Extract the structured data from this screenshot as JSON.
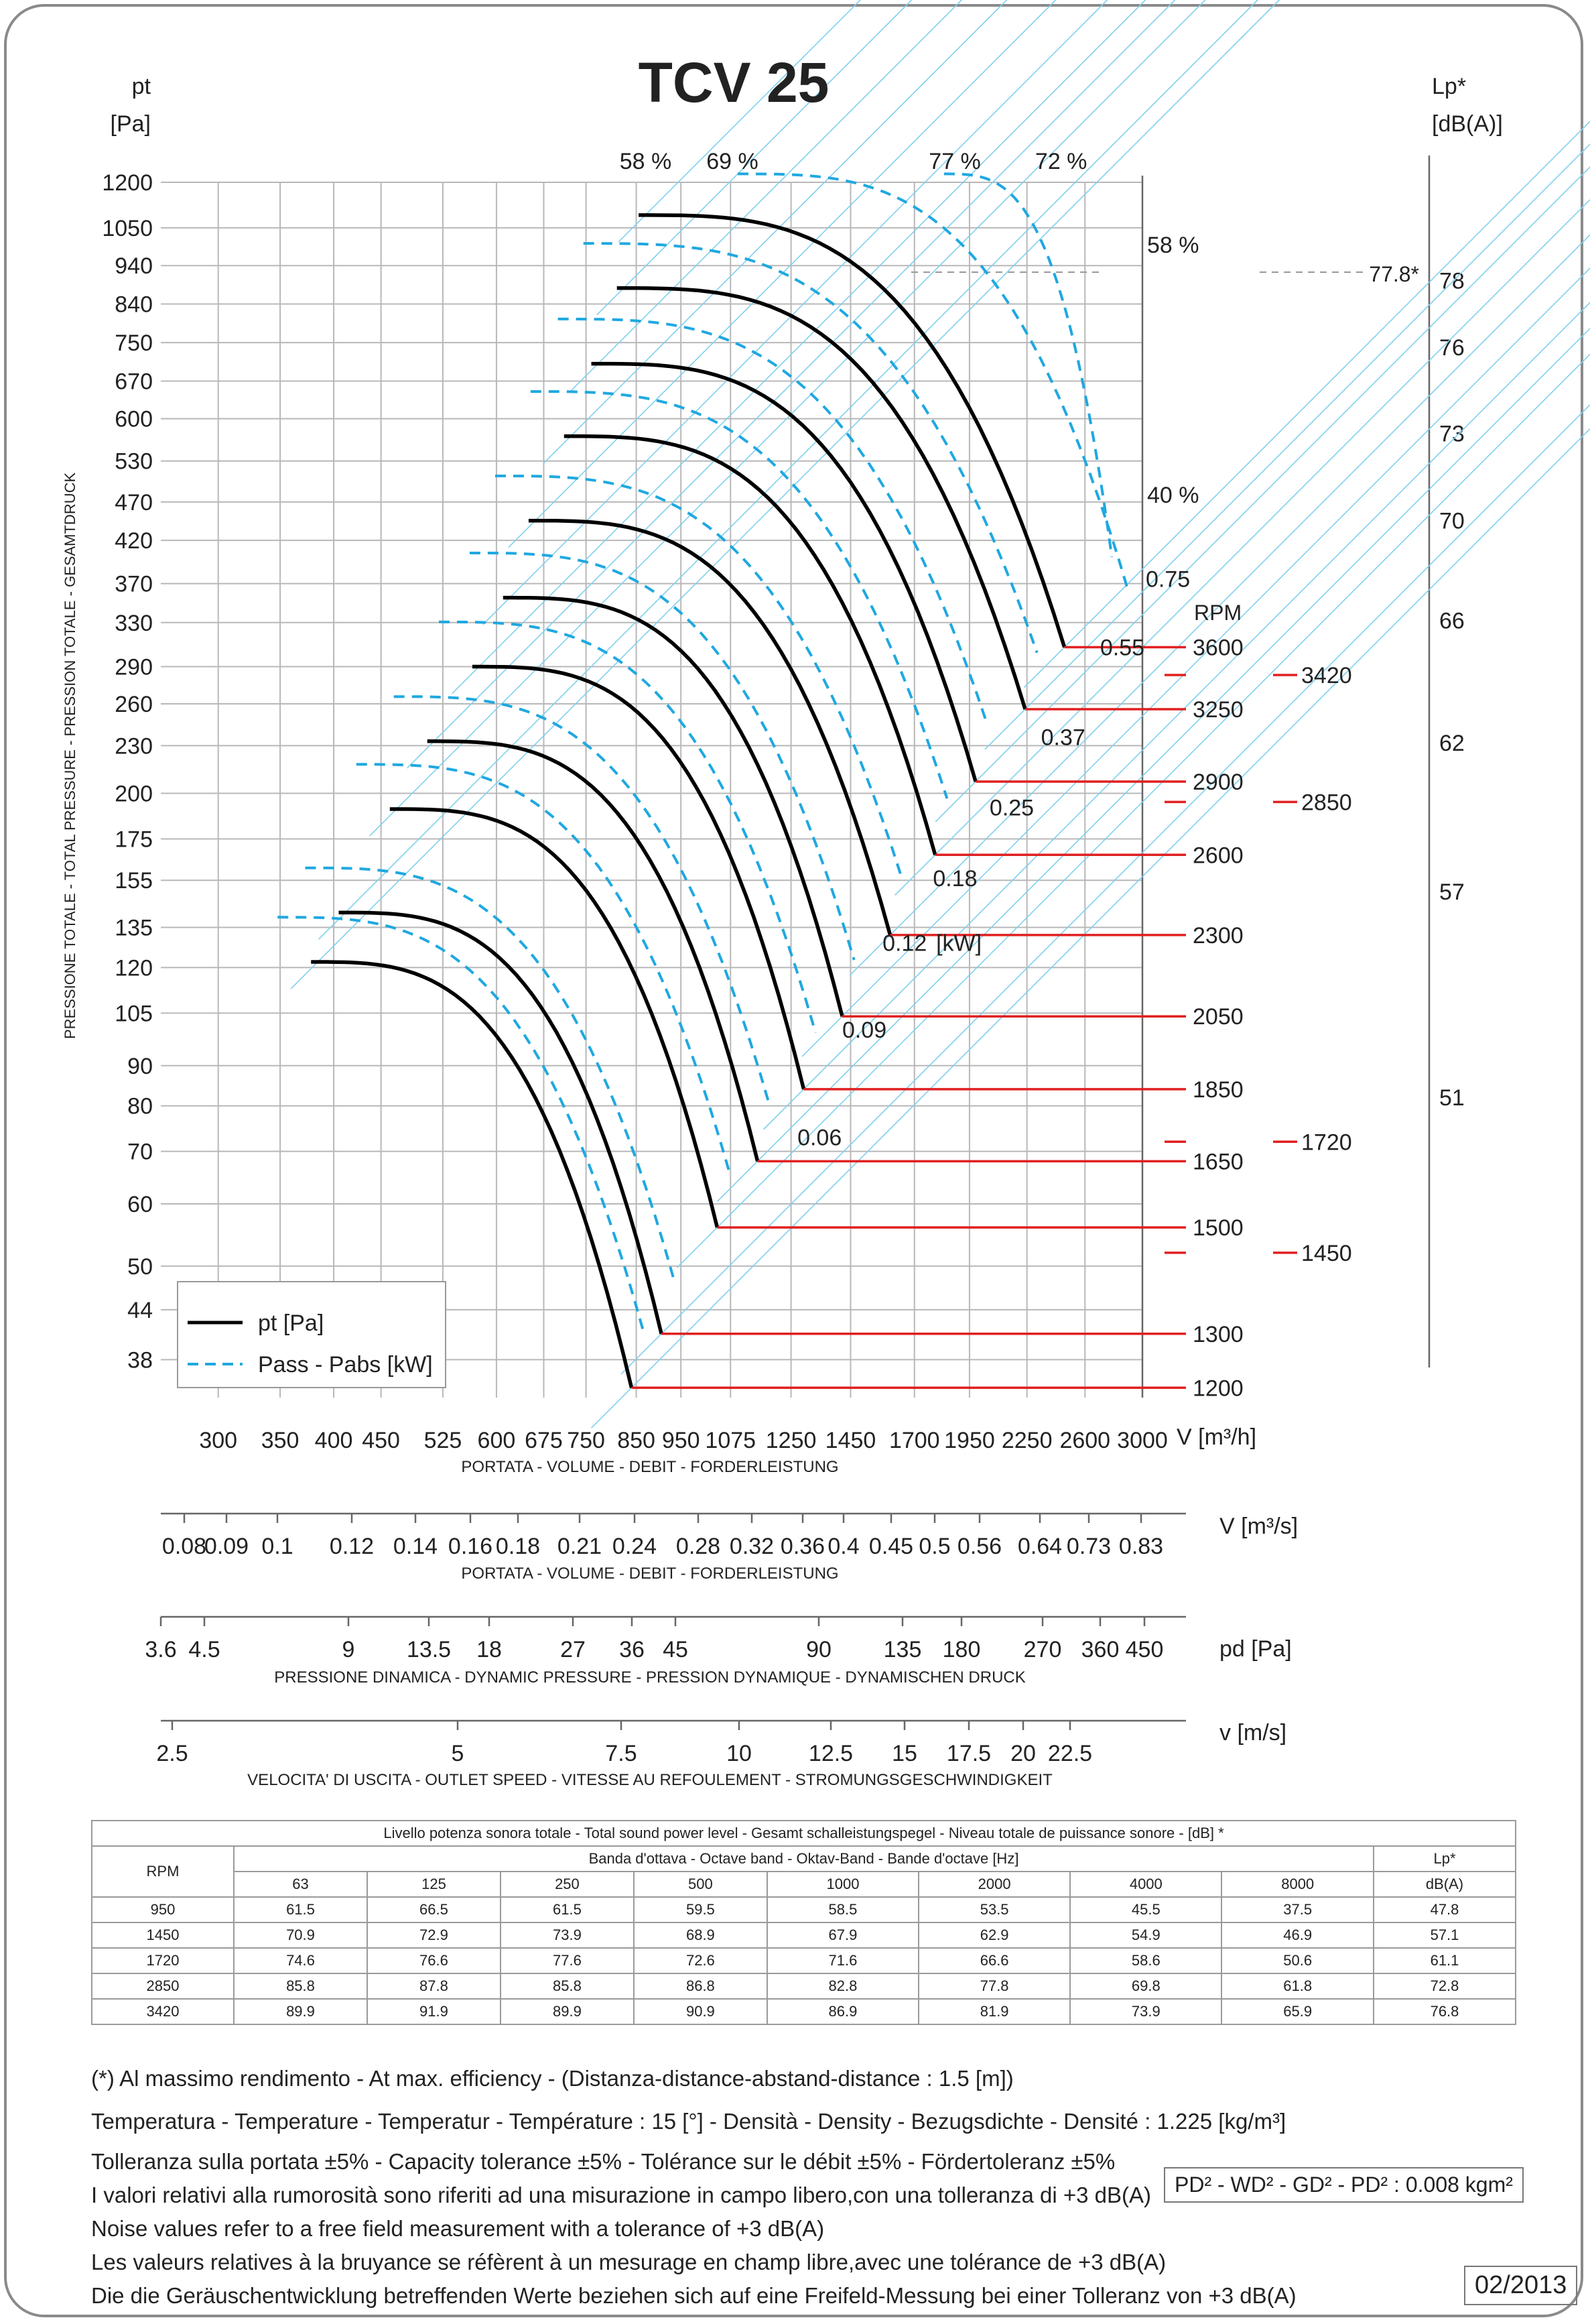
{
  "header": {
    "title": "TCV 25",
    "left_axis_label": "pt",
    "left_axis_unit": "[Pa]",
    "right_axis_label": "Lp*",
    "right_axis_unit": "[dB(A)]",
    "vertical_label": "PRESSIONE TOTALE - TOTAL PRESSURE - PRESSION TOTALE - GESAMTDRUCK",
    "rpm_label": "RPM",
    "kw_unit": "[kW]",
    "mark_77_8": "77.8*"
  },
  "chart_data": {
    "type": "line",
    "title": "TCV 25",
    "xlabel": "V [m³/h]",
    "ylabel": "pt [Pa]",
    "x_scale": "log",
    "y_scale": "log",
    "xlim": [
      260,
      3000
    ],
    "ylim": [
      34,
      1200
    ],
    "grid": true,
    "legend_position": "bottom-left",
    "legend": [
      {
        "name": "pt [Pa]",
        "style": "solid",
        "color": "#000000"
      },
      {
        "name": "Pass - Pabs [kW]",
        "style": "dashed",
        "color": "#1fa8e0"
      }
    ],
    "y_ticks": [
      1200,
      1050,
      940,
      840,
      750,
      670,
      600,
      530,
      470,
      420,
      370,
      330,
      290,
      260,
      230,
      200,
      175,
      155,
      135,
      120,
      105,
      90,
      80,
      70,
      60,
      50,
      44,
      38
    ],
    "x_ticks": [
      300,
      350,
      400,
      450,
      525,
      600,
      675,
      750,
      850,
      950,
      1075,
      1250,
      1450,
      1700,
      1950,
      2250,
      2600,
      3000
    ],
    "right_ticks": [
      {
        "label": "78",
        "pt": 900
      },
      {
        "label": "76",
        "pt": 740
      },
      {
        "label": "73",
        "pt": 575
      },
      {
        "label": "70",
        "pt": 445
      },
      {
        "label": "66",
        "pt": 332
      },
      {
        "label": "62",
        "pt": 232
      },
      {
        "label": "57",
        "pt": 150
      },
      {
        "label": "51",
        "pt": 82
      }
    ],
    "efficiency_labels": [
      {
        "label": "58 %",
        "v": 870,
        "pt": 1280
      },
      {
        "label": "69 %",
        "v": 1080,
        "pt": 1280
      },
      {
        "label": "77 %",
        "v": 1880,
        "pt": 1280
      },
      {
        "label": "72 %",
        "v": 2450,
        "pt": 1280
      },
      {
        "label": "58 %",
        "v": 3000,
        "pt": 1000
      },
      {
        "label": "40 %",
        "v": 3000,
        "pt": 480
      }
    ],
    "power_labels": [
      {
        "label": "0.75",
        "v": 3000,
        "pt": 375
      },
      {
        "label": "0.55",
        "v": 2700,
        "pt": 307
      },
      {
        "label": "0.37",
        "v": 2330,
        "pt": 236
      },
      {
        "label": "0.25",
        "v": 2050,
        "pt": 192
      },
      {
        "label": "0.18",
        "v": 1780,
        "pt": 156
      },
      {
        "label": "0.12",
        "v": 1570,
        "pt": 129
      },
      {
        "label": "0.09",
        "v": 1420,
        "pt": 100
      },
      {
        "label": "0.06",
        "v": 1270,
        "pt": 73
      }
    ],
    "rpm_curves": [
      {
        "rpm": "3600",
        "pt0": 1090,
        "v0": 855,
        "v_end": 2470,
        "pt_end": 307
      },
      {
        "rpm": "3250",
        "pt0": 880,
        "v0": 810,
        "v_end": 2240,
        "pt_end": 256
      },
      {
        "rpm": "2900",
        "pt0": 705,
        "v0": 760,
        "v_end": 1980,
        "pt_end": 207
      },
      {
        "rpm": "2600",
        "pt0": 570,
        "v0": 710,
        "v_end": 1790,
        "pt_end": 167
      },
      {
        "rpm": "2300",
        "pt0": 445,
        "v0": 650,
        "v_end": 1600,
        "pt_end": 132
      },
      {
        "rpm": "2050",
        "pt0": 355,
        "v0": 610,
        "v_end": 1420,
        "pt_end": 104
      },
      {
        "rpm": "1850",
        "pt0": 290,
        "v0": 565,
        "v_end": 1290,
        "pt_end": 84
      },
      {
        "rpm": "1650",
        "pt0": 233,
        "v0": 505,
        "v_end": 1150,
        "pt_end": 68
      },
      {
        "rpm": "1500",
        "pt0": 191,
        "v0": 460,
        "v_end": 1040,
        "pt_end": 56
      },
      {
        "rpm": "1300",
        "pt0": 141,
        "v0": 405,
        "v_end": 905,
        "pt_end": 41
      },
      {
        "rpm": "1200",
        "pt0": 122,
        "v0": 378,
        "v_end": 840,
        "pt_end": 35
      }
    ],
    "rpm_side_labels": [
      {
        "rpm": "3420",
        "pt": 283
      },
      {
        "rpm": "2850",
        "pt": 195
      },
      {
        "rpm": "1720",
        "pt": 72
      },
      {
        "rpm": "1450",
        "pt": 52
      }
    ],
    "secondary_axes": [
      {
        "name": "V [m³/s]",
        "ticks": [
          "0.08",
          "0.09",
          "0.1",
          "0.12",
          "0.14",
          "0.16",
          "0.18",
          "0.21",
          "0.24",
          "0.28",
          "0.32",
          "0.36",
          "0.4",
          "0.45",
          "0.5",
          "0.56",
          "0.64",
          "0.73",
          "0.83"
        ]
      },
      {
        "name": "pd [Pa]",
        "ticks": [
          "3.6",
          "4.5",
          "9",
          "13.5",
          "18",
          "27",
          "36",
          "45",
          "90",
          "135",
          "180",
          "270",
          "360",
          "450"
        ]
      },
      {
        "name": "v [m/s]",
        "ticks": [
          "2.5",
          "5",
          "7.5",
          "10",
          "12.5",
          "15",
          "17.5",
          "20",
          "22.5"
        ]
      }
    ]
  },
  "axes_titles": {
    "volume_caption": "PORTATA - VOLUME - DEBIT - FORDERLEISTUNG",
    "v_m3h_label": "V [m³/h]",
    "v_m3s_label": "V  [m³/s]",
    "pd_label": "pd  [Pa]",
    "pd_caption": "PRESSIONE DINAMICA - DYNAMIC PRESSURE - PRESSION DYNAMIQUE - DYNAMISCHEN DRUCK",
    "v_ms_label": "v  [m/s]",
    "v_ms_caption": "VELOCITA' DI USCITA - OUTLET SPEED - VITESSE AU REFOULEMENT - STROMUNGSGESCHWINDIGKEIT"
  },
  "sound_table": {
    "title": "Livello potenza sonora totale - Total sound power level - Gesamt schalleistungspegel - Niveau totale de puissance sonore - [dB]   *",
    "band_header": "Banda d'ottava - Octave band - Oktav-Band - Bande d'octave [Hz]",
    "rpm_header": "RPM",
    "lp_header": "Lp*",
    "lp_unit": "dB(A)",
    "bands": [
      "63",
      "125",
      "250",
      "500",
      "1000",
      "2000",
      "4000",
      "8000"
    ],
    "rows": [
      {
        "rpm": "950",
        "values": [
          "61.5",
          "66.5",
          "61.5",
          "59.5",
          "58.5",
          "53.5",
          "45.5",
          "37.5"
        ],
        "lp": "47.8"
      },
      {
        "rpm": "1450",
        "values": [
          "70.9",
          "72.9",
          "73.9",
          "68.9",
          "67.9",
          "62.9",
          "54.9",
          "46.9"
        ],
        "lp": "57.1"
      },
      {
        "rpm": "1720",
        "values": [
          "74.6",
          "76.6",
          "77.6",
          "72.6",
          "71.6",
          "66.6",
          "58.6",
          "50.6"
        ],
        "lp": "61.1"
      },
      {
        "rpm": "2850",
        "values": [
          "85.8",
          "87.8",
          "85.8",
          "86.8",
          "82.8",
          "77.8",
          "69.8",
          "61.8"
        ],
        "lp": "72.8"
      },
      {
        "rpm": "3420",
        "values": [
          "89.9",
          "91.9",
          "89.9",
          "90.9",
          "86.9",
          "81.9",
          "73.9",
          "65.9"
        ],
        "lp": "76.8"
      }
    ]
  },
  "notes": {
    "efficiency": "(*) Al massimo rendimento - At max. efficiency - (Distanza-distance-abstand-distance : 1.5 [m])",
    "conditions": "Temperatura - Temperature - Temperatur - Température : 15 [°]  -  Densità - Density - Bezugsdichte - Densité : 1.225 [kg/m³]",
    "tolerance_1": "Tolleranza sulla portata  ±5% - Capacity tolerance ±5% - Tolérance sur le débit ±5% - Fördertoleranz ±5%",
    "tolerance_2": "I valori relativi alla rumorosità sono riferiti ad una misurazione in campo libero,con una tolleranza di +3 dB(A)",
    "tolerance_3": "Noise values refer to a free field measurement with a tolerance of +3 dB(A)",
    "tolerance_4": "Les valeurs relatives à la bruyance se réfèrent à un mesurage en champ libre,avec une tolérance de +3 dB(A)",
    "tolerance_5": "Die die Geräuschentwicklung betreffenden Werte beziehen sich auf eine Freifeld-Messung bei einer Tolleranz von +3 dB(A)",
    "inertia": "PD² -  WD² - GD² -  PD²  :  0.008 kgm²",
    "date": "02/2013"
  }
}
